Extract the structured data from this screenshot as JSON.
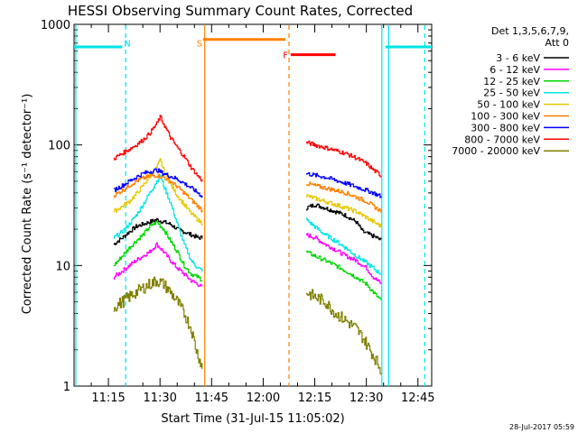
{
  "chart_data": {
    "type": "line",
    "title": "HESSI Observing Summary Count Rates, Corrected",
    "xlabel": "Start Time (31-Jul-15 11:05:02)",
    "ylabel": "Corrected Count Rate (s⁻¹ detector⁻¹)",
    "yscale": "log",
    "ylim": [
      1,
      1000
    ],
    "xlim_minutes": [
      0,
      104
    ],
    "y_ticks": [
      "1",
      "10",
      "100",
      "1000"
    ],
    "x_ticks": [
      {
        "label": "11:15",
        "t": 10
      },
      {
        "label": "11:30",
        "t": 25
      },
      {
        "label": "11:45",
        "t": 40
      },
      {
        "label": "12:00",
        "t": 55
      },
      {
        "label": "12:15",
        "t": 70
      },
      {
        "label": "12:30",
        "t": 85
      },
      {
        "label": "12:45",
        "t": 100
      }
    ],
    "legend_header": [
      "Det 1,3,5,6,7,9,",
      "Att 0"
    ],
    "legend_position": "right",
    "timestamp": "28-Jul-2017 05:59",
    "series": [
      {
        "name": "3 - 6 keV",
        "color": "#000000",
        "seg1": [
          [
            11.5,
            15
          ],
          [
            14,
            17
          ],
          [
            16,
            19
          ],
          [
            18,
            21
          ],
          [
            20,
            22
          ],
          [
            22,
            23
          ],
          [
            24,
            24
          ],
          [
            26,
            23
          ],
          [
            28,
            22
          ],
          [
            30,
            20
          ],
          [
            32,
            19
          ],
          [
            34,
            18
          ],
          [
            36,
            17
          ],
          [
            37.5,
            17
          ]
        ],
        "seg2": [
          [
            67.5,
            30
          ],
          [
            70,
            32
          ],
          [
            73,
            30
          ],
          [
            76,
            28
          ],
          [
            79,
            26
          ],
          [
            82,
            23
          ],
          [
            84,
            19
          ],
          [
            86,
            18
          ],
          [
            88,
            17
          ],
          [
            89.5,
            16
          ]
        ]
      },
      {
        "name": "6 - 12 keV",
        "color": "#ff00ff",
        "seg1": [
          [
            11.5,
            8
          ],
          [
            14,
            9
          ],
          [
            16,
            10
          ],
          [
            18,
            11
          ],
          [
            20,
            12
          ],
          [
            22,
            13
          ],
          [
            24,
            15
          ],
          [
            26,
            13
          ],
          [
            28,
            11
          ],
          [
            30,
            9.5
          ],
          [
            32,
            8.5
          ],
          [
            34,
            7.5
          ],
          [
            36,
            7
          ],
          [
            37.5,
            6.5
          ]
        ],
        "seg2": [
          [
            67.5,
            18
          ],
          [
            70,
            17
          ],
          [
            73,
            15
          ],
          [
            76,
            13.5
          ],
          [
            79,
            12
          ],
          [
            82,
            11
          ],
          [
            85,
            9.5
          ],
          [
            87,
            8
          ],
          [
            89.5,
            7
          ]
        ]
      },
      {
        "name": "12 - 25 keV",
        "color": "#00d800",
        "seg1": [
          [
            11.5,
            10
          ],
          [
            14,
            12
          ],
          [
            16,
            14
          ],
          [
            18,
            16
          ],
          [
            20,
            18
          ],
          [
            22,
            21
          ],
          [
            24,
            23
          ],
          [
            26,
            20
          ],
          [
            28,
            16
          ],
          [
            30,
            13
          ],
          [
            32,
            10
          ],
          [
            34,
            8.5
          ],
          [
            36,
            8
          ],
          [
            37.5,
            7.5
          ]
        ],
        "seg2": [
          [
            67.5,
            13
          ],
          [
            70,
            12
          ],
          [
            73,
            11
          ],
          [
            76,
            10
          ],
          [
            79,
            9
          ],
          [
            82,
            8
          ],
          [
            85,
            7
          ],
          [
            87,
            6
          ],
          [
            89.5,
            5
          ]
        ]
      },
      {
        "name": "25 - 50 keV",
        "color": "#00e5e5",
        "seg1": [
          [
            11.5,
            17
          ],
          [
            14,
            19
          ],
          [
            16,
            22
          ],
          [
            18,
            26
          ],
          [
            20,
            32
          ],
          [
            22,
            40
          ],
          [
            24,
            50
          ],
          [
            25,
            56
          ],
          [
            26,
            46
          ],
          [
            28,
            33
          ],
          [
            30,
            22
          ],
          [
            32,
            15
          ],
          [
            34,
            11
          ],
          [
            36,
            9.5
          ],
          [
            37.5,
            9
          ]
        ],
        "seg2": [
          [
            67.5,
            24
          ],
          [
            70,
            21
          ],
          [
            73,
            18
          ],
          [
            76,
            16
          ],
          [
            79,
            14
          ],
          [
            82,
            12
          ],
          [
            84,
            11
          ],
          [
            86,
            10
          ],
          [
            88,
            9
          ],
          [
            89.5,
            8.5
          ]
        ]
      },
      {
        "name": "50 - 100 keV",
        "color": "#e8c800",
        "seg1": [
          [
            11.5,
            28
          ],
          [
            14,
            31
          ],
          [
            16,
            34
          ],
          [
            18,
            39
          ],
          [
            20,
            46
          ],
          [
            22,
            55
          ],
          [
            24,
            65
          ],
          [
            25,
            75
          ],
          [
            26,
            62
          ],
          [
            28,
            47
          ],
          [
            30,
            38
          ],
          [
            32,
            32
          ],
          [
            34,
            27
          ],
          [
            36,
            24
          ],
          [
            37.5,
            22
          ]
        ],
        "seg2": [
          [
            67.5,
            38
          ],
          [
            70,
            36
          ],
          [
            73,
            34
          ],
          [
            76,
            32
          ],
          [
            79,
            30
          ],
          [
            82,
            28
          ],
          [
            85,
            25
          ],
          [
            87,
            23
          ],
          [
            89.5,
            21
          ]
        ]
      },
      {
        "name": "100 - 300 keV",
        "color": "#ff8000",
        "seg1": [
          [
            11.5,
            38
          ],
          [
            14,
            42
          ],
          [
            16,
            46
          ],
          [
            18,
            50
          ],
          [
            20,
            53
          ],
          [
            22,
            55
          ],
          [
            24,
            56
          ],
          [
            26,
            54
          ],
          [
            28,
            50
          ],
          [
            30,
            45
          ],
          [
            32,
            40
          ],
          [
            34,
            35
          ],
          [
            36,
            31
          ],
          [
            37.5,
            28
          ]
        ],
        "seg2": [
          [
            67.5,
            48
          ],
          [
            70,
            46
          ],
          [
            73,
            44
          ],
          [
            76,
            42
          ],
          [
            79,
            40
          ],
          [
            82,
            37
          ],
          [
            85,
            34
          ],
          [
            87,
            31
          ],
          [
            89.5,
            28
          ]
        ]
      },
      {
        "name": "300 - 800 keV",
        "color": "#0000ff",
        "seg1": [
          [
            11.5,
            42
          ],
          [
            14,
            46
          ],
          [
            16,
            50
          ],
          [
            18,
            54
          ],
          [
            20,
            58
          ],
          [
            22,
            60
          ],
          [
            24,
            62
          ],
          [
            26,
            58
          ],
          [
            28,
            55
          ],
          [
            30,
            52
          ],
          [
            32,
            48
          ],
          [
            34,
            44
          ],
          [
            36,
            40
          ],
          [
            37.5,
            37
          ]
        ],
        "seg2": [
          [
            67.5,
            58
          ],
          [
            70,
            56
          ],
          [
            73,
            54
          ],
          [
            76,
            51
          ],
          [
            79,
            48
          ],
          [
            82,
            45
          ],
          [
            85,
            42
          ],
          [
            87,
            40
          ],
          [
            89.5,
            37
          ]
        ]
      },
      {
        "name": "800 - 7000 keV",
        "color": "#ff0000",
        "seg1": [
          [
            11.5,
            77
          ],
          [
            14,
            85
          ],
          [
            16,
            92
          ],
          [
            18,
            100
          ],
          [
            20,
            110
          ],
          [
            22,
            125
          ],
          [
            24,
            150
          ],
          [
            25,
            170
          ],
          [
            26,
            150
          ],
          [
            28,
            115
          ],
          [
            30,
            95
          ],
          [
            32,
            80
          ],
          [
            34,
            65
          ],
          [
            36,
            55
          ],
          [
            37.5,
            50
          ]
        ],
        "seg2": [
          [
            67.5,
            105
          ],
          [
            70,
            100
          ],
          [
            73,
            95
          ],
          [
            76,
            90
          ],
          [
            79,
            85
          ],
          [
            82,
            78
          ],
          [
            85,
            70
          ],
          [
            87,
            62
          ],
          [
            89.5,
            55
          ]
        ]
      },
      {
        "name": "7000 - 20000 keV",
        "color": "#808000",
        "seg1": [
          [
            11.5,
            4.5
          ],
          [
            14,
            5
          ],
          [
            16,
            5.5
          ],
          [
            18,
            6
          ],
          [
            20,
            6.5
          ],
          [
            22,
            7
          ],
          [
            24,
            7.5
          ],
          [
            26,
            7
          ],
          [
            28,
            6
          ],
          [
            30,
            5
          ],
          [
            32,
            4
          ],
          [
            34,
            3
          ],
          [
            35.5,
            2
          ],
          [
            37,
            1.5
          ],
          [
            37.5,
            1.2
          ]
        ],
        "seg2": [
          [
            67.5,
            6
          ],
          [
            70,
            5.5
          ],
          [
            73,
            5
          ],
          [
            76,
            4
          ],
          [
            79,
            3.5
          ],
          [
            82,
            3
          ],
          [
            84,
            2.5
          ],
          [
            86,
            2
          ],
          [
            88,
            1.6
          ],
          [
            89.5,
            1.3
          ]
        ]
      }
    ],
    "attenuator_panels": [
      {
        "t0": 0,
        "t1": 14,
        "color": "#00e5e5",
        "level": 650,
        "label": ""
      },
      {
        "t0": 37.5,
        "t1": 61.5,
        "color": "#ff8000",
        "level": 750,
        "label": ""
      },
      {
        "t0": 90.5,
        "t1": 104,
        "color": "#00e5e5",
        "level": 650,
        "label": ""
      }
    ],
    "bars": [
      {
        "t0": 0,
        "t1": 14,
        "color": "#00e5e5",
        "level": 650
      },
      {
        "t0": 37.5,
        "t1": 61.5,
        "color": "#ff8000",
        "level": 750
      },
      {
        "t0": 63,
        "t1": 76,
        "color": "#ff0000",
        "level": 560
      },
      {
        "t0": 90.5,
        "t1": 104,
        "color": "#00e5e5",
        "level": 650
      }
    ],
    "markers": [
      {
        "letter": "N",
        "t": 15.5,
        "color": "#00e5e5"
      },
      {
        "letter": "S",
        "t": 36.5,
        "color": "#ff8000"
      },
      {
        "letter": "F",
        "t": 61.5,
        "color": "#ff0000"
      }
    ],
    "vlines": [
      {
        "t": 0.5,
        "color": "#00e5e5",
        "dash": false
      },
      {
        "t": 15,
        "color": "#00e5e5",
        "dash": true
      },
      {
        "t": 38,
        "color": "#ff8000",
        "dash": false
      },
      {
        "t": 62.5,
        "color": "#ff8000",
        "dash": true
      },
      {
        "t": 89.5,
        "color": "#00e5e5",
        "dash": false
      },
      {
        "t": 91.5,
        "color": "#00e5e5",
        "dash": false
      },
      {
        "t": 102,
        "color": "#00e5e5",
        "dash": true
      }
    ],
    "gaps": [
      [
        37.5,
        67.5
      ],
      [
        89.5,
        104
      ]
    ]
  }
}
